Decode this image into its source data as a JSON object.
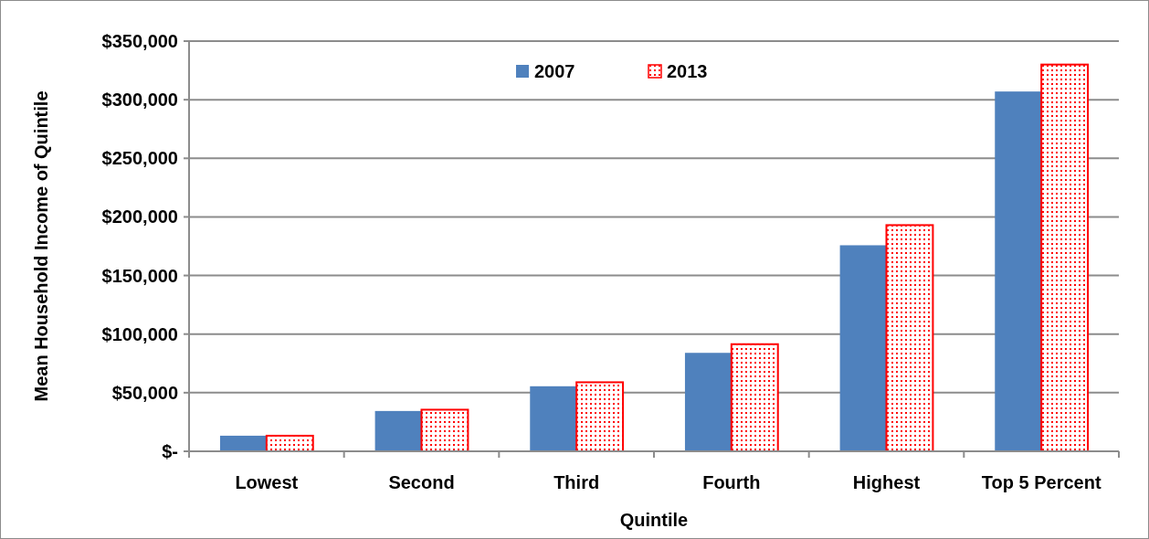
{
  "chart_data": {
    "type": "bar",
    "xlabel": "Quintile",
    "ylabel": "Mean Household Income of Quintile",
    "categories": [
      "Lowest",
      "Second",
      "Third",
      "Fourth",
      "Highest",
      "Top 5 Percent"
    ],
    "series": [
      {
        "name": "2007",
        "color": "#4f81bd",
        "values": [
          13300,
          34400,
          55500,
          84000,
          175800,
          307000
        ]
      },
      {
        "name": "2013",
        "color": "#ff0000",
        "values": [
          13300,
          35500,
          58900,
          91400,
          193000,
          330000
        ]
      }
    ],
    "ylim": [
      0,
      350000
    ],
    "yticks": [
      {
        "value": 0,
        "label": "$-"
      },
      {
        "value": 50000,
        "label": "$50,000"
      },
      {
        "value": 100000,
        "label": "$100,000"
      },
      {
        "value": 150000,
        "label": "$150,000"
      },
      {
        "value": 200000,
        "label": "$200,000"
      },
      {
        "value": 250000,
        "label": "$250,000"
      },
      {
        "value": 300000,
        "label": "$300,000"
      },
      {
        "value": 350000,
        "label": "$350,000"
      }
    ],
    "grid": "y",
    "legend": "top"
  }
}
